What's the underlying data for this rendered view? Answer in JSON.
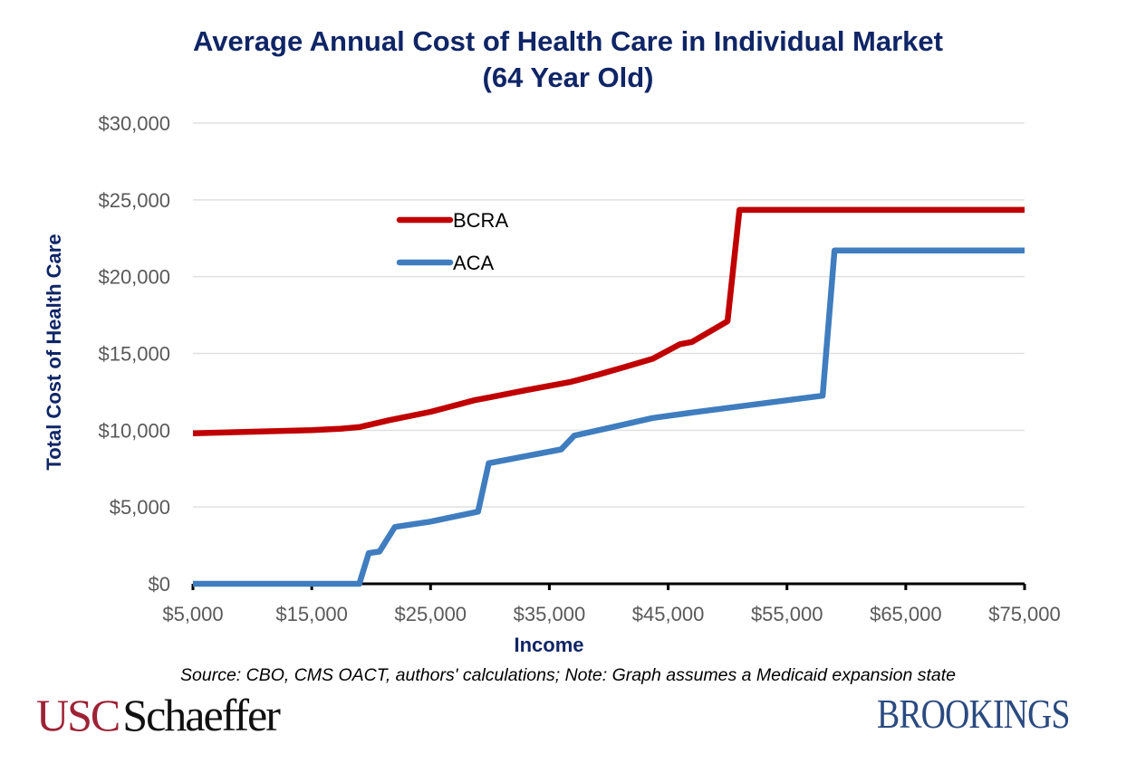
{
  "chart_data": {
    "type": "line",
    "title": "Average Annual Cost of Health Care in Individual Market",
    "subtitle": "(64 Year Old)",
    "xlabel": "Income",
    "ylabel": "Total Cost of Health Care",
    "xlim": [
      5000,
      75000
    ],
    "ylim": [
      0,
      30000
    ],
    "x_ticks": [
      5000,
      15000,
      25000,
      35000,
      45000,
      55000,
      65000,
      75000
    ],
    "x_tick_labels": [
      "$5,000",
      "$15,000",
      "$25,000",
      "$35,000",
      "$45,000",
      "$55,000",
      "$65,000",
      "$75,000"
    ],
    "y_ticks": [
      0,
      5000,
      10000,
      15000,
      20000,
      25000,
      30000
    ],
    "y_tick_labels": [
      "$0",
      "$5,000",
      "$10,000",
      "$15,000",
      "$20,000",
      "$25,000",
      "$30,000"
    ],
    "grid": "horizontal",
    "legend_position": "upper-center",
    "series": [
      {
        "name": "BCRA",
        "color": "#C00000",
        "points": [
          [
            5000,
            9800
          ],
          [
            10000,
            9900
          ],
          [
            15000,
            10000
          ],
          [
            17500,
            10100
          ],
          [
            19000,
            10200
          ],
          [
            21500,
            10650
          ],
          [
            25000,
            11200
          ],
          [
            28700,
            11950
          ],
          [
            30000,
            12150
          ],
          [
            33000,
            12600
          ],
          [
            36800,
            13150
          ],
          [
            39000,
            13600
          ],
          [
            41500,
            14150
          ],
          [
            43700,
            14650
          ],
          [
            46000,
            15600
          ],
          [
            47000,
            15750
          ],
          [
            50000,
            17100
          ],
          [
            51000,
            24350
          ],
          [
            75000,
            24350
          ]
        ]
      },
      {
        "name": "ACA",
        "color": "#3F7DBF",
        "points": [
          [
            5000,
            0
          ],
          [
            19000,
            0
          ],
          [
            19800,
            2000
          ],
          [
            20700,
            2100
          ],
          [
            22000,
            3700
          ],
          [
            25000,
            4050
          ],
          [
            29000,
            4700
          ],
          [
            29900,
            7850
          ],
          [
            36000,
            8750
          ],
          [
            37100,
            9650
          ],
          [
            40000,
            10150
          ],
          [
            43700,
            10800
          ],
          [
            47000,
            11150
          ],
          [
            52000,
            11650
          ],
          [
            58000,
            12250
          ],
          [
            59000,
            21700
          ],
          [
            75000,
            21700
          ]
        ]
      }
    ]
  },
  "footer": {
    "source": "Source: CBO, CMS OACT, authors' calculations; Note: Graph assumes a Medicaid expansion state",
    "logo_left_part1": "USC",
    "logo_left_part2": "Schaeffer",
    "logo_right": "BROOKINGS"
  }
}
